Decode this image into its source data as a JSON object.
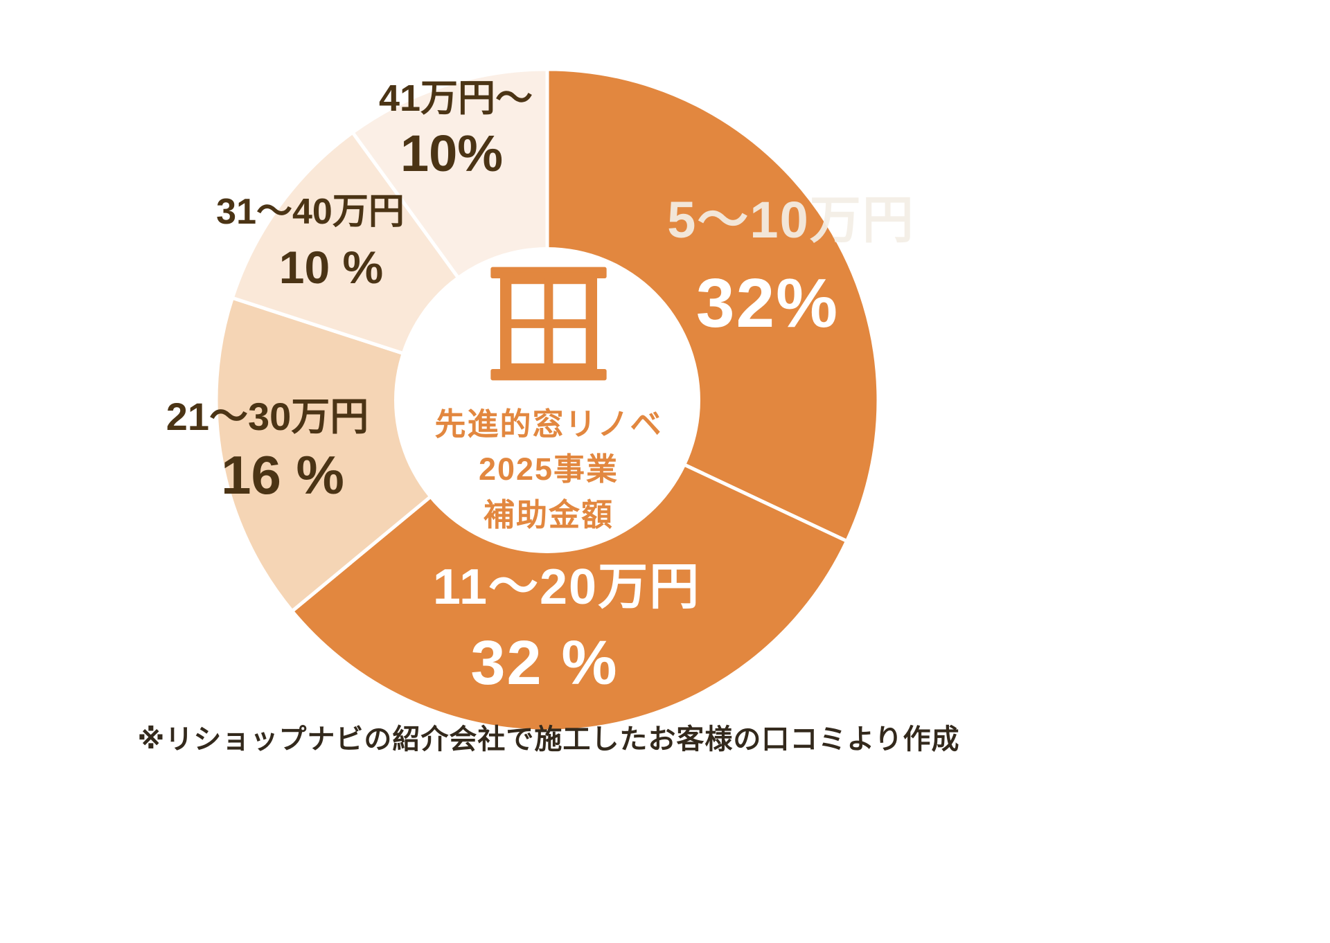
{
  "chart_data": {
    "type": "pie",
    "subtype": "donut",
    "title": "先進的窓リノベ2025事業 補助金額",
    "center_label_lines": [
      "先進的窓リノベ",
      "2025事業",
      "補助金額"
    ],
    "center_icon": "window-icon",
    "start_angle": "top",
    "direction": "clockwise",
    "legend_position": "none",
    "segments": [
      {
        "label": "5〜10万円",
        "value": 32,
        "percent_label": "32%",
        "color": "#E2873F"
      },
      {
        "label": "11〜20万円",
        "value": 32,
        "percent_label": "32 %",
        "color": "#E2873F"
      },
      {
        "label": "21〜30万円",
        "value": 16,
        "percent_label": "16 %",
        "color": "#F5D5B5"
      },
      {
        "label": "31〜40万円",
        "value": 10,
        "percent_label": "10 %",
        "color": "#FAE8D8"
      },
      {
        "label": "41万円〜",
        "value": 10,
        "percent_label": "10%",
        "color": "#FBEFE6"
      }
    ],
    "footnote": "※リショップナビの紹介会社で施工したお客様の口コミより作成"
  },
  "colors": {
    "primary_orange": "#E2873F",
    "slice_light_1": "#F5D5B5",
    "slice_light_2": "#FAE8D8",
    "slice_light_3": "#FBEFE6",
    "dark_label": "#4B3415",
    "inner_slice_label": "#FFFFFF",
    "background": "#FFFFFF"
  }
}
